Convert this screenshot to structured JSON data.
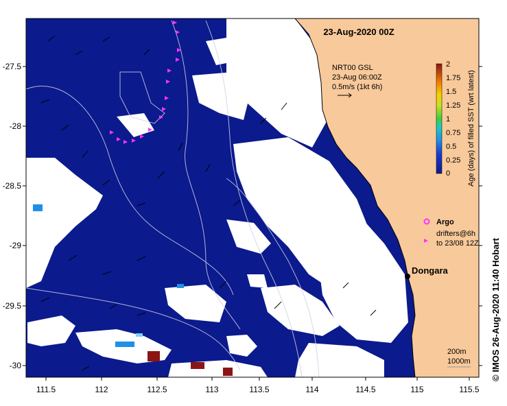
{
  "title": "23-Aug-2020 00Z",
  "map": {
    "lon_ticks": [
      "111.5",
      "112",
      "112.5",
      "113",
      "113.5",
      "114",
      "114.5",
      "115",
      "115.5"
    ],
    "lat_ticks": [
      "-27.5",
      "-28",
      "-28.5",
      "-29",
      "-29.5",
      "-30"
    ],
    "lon_range": [
      111.3,
      115.6
    ],
    "lat_range": [
      -27.1,
      -30.1
    ]
  },
  "current_info": {
    "line1": "NRT00 GSL",
    "line2": "23-Aug 06:00Z",
    "line3": "0.5m/s (1kt 6h)"
  },
  "colorbar": {
    "label": "Age (days) of filled SST (wrt latest)",
    "ticks": [
      "2",
      "1.75",
      "1.5",
      "1.25",
      "1",
      "0.75",
      "0.5",
      "0.25",
      "0"
    ]
  },
  "legend": {
    "argo": "Argo",
    "drifters_line1": "drifters@6h",
    "drifters_line2": "to 23/08 12Z"
  },
  "place": {
    "name": "Dongara"
  },
  "scale": {
    "small": "200m",
    "large": "1000m"
  },
  "credit": "© IMOS 26-Aug-2020 11:40 Hobart",
  "colors": {
    "ocean": "#0b1a8c",
    "land": "#f8c99a",
    "cloud": "#ffffff",
    "age_high": "#8b1515",
    "age_low": "#1e90e6",
    "argo": "#ff33ff"
  }
}
